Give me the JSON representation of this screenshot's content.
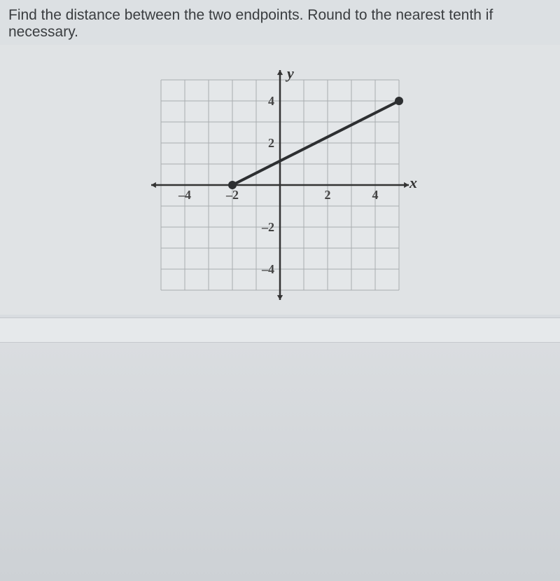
{
  "question": "Find the distance between the two endpoints. Round to the nearest tenth if necessary.",
  "chart": {
    "type": "line-segment-on-grid",
    "x_axis_label": "x",
    "y_axis_label": "y",
    "xlim": [
      -5,
      5
    ],
    "ylim": [
      -5,
      5
    ],
    "xtick_labels": [
      -4,
      -2,
      2,
      4
    ],
    "ytick_labels": [
      -4,
      -2,
      2,
      4
    ],
    "grid_color": "#a9acb0",
    "axis_color": "#333333",
    "background_color": "#e4e7e9",
    "line_color": "#2d2f31",
    "line_width": 4,
    "points": [
      {
        "x": -2,
        "y": 0
      },
      {
        "x": 5,
        "y": 4
      }
    ],
    "point_radius": 6,
    "point_color": "#2d2f31",
    "tick_fontsize": 18,
    "axis_label_fontsize": 22
  }
}
